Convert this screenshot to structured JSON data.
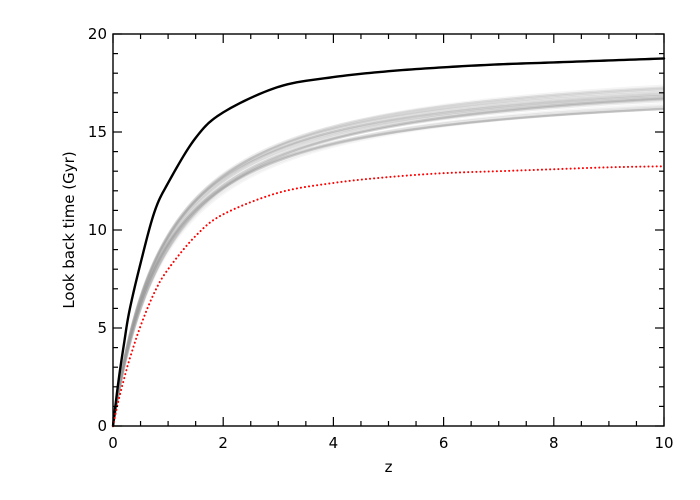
{
  "chart_data": {
    "type": "line",
    "title": "",
    "xlabel": "z",
    "ylabel": "Look back time (Gyr)",
    "xlim": [
      0,
      10
    ],
    "ylim": [
      0,
      20
    ],
    "xticks": [
      0,
      2,
      4,
      6,
      8,
      10
    ],
    "yticks": [
      0,
      5,
      10,
      15,
      20
    ],
    "xtick_labels": [
      "0",
      "2",
      "4",
      "6",
      "8",
      "10"
    ],
    "ytick_labels": [
      "0",
      "5",
      "10",
      "15",
      "20"
    ],
    "x_minor_step": 0.5,
    "y_minor_step": 1,
    "grid": false,
    "legend": "none",
    "ensemble": {
      "color": "#9a9a9a",
      "note_count": 30,
      "t_max_range": [
        17.6,
        19.1
      ],
      "z_half_range": [
        0.88,
        1.05
      ]
    },
    "series": [
      {
        "style": "solid",
        "color": "#000000",
        "x": [
          0,
          0.1,
          0.2,
          0.3,
          0.5,
          0.75,
          1,
          1.5,
          2,
          3,
          4,
          5,
          6,
          7,
          8,
          9,
          10
        ],
        "y": [
          0,
          2.3,
          4.2,
          5.9,
          8.3,
          10.9,
          12.4,
          14.7,
          16.0,
          17.3,
          17.8,
          18.1,
          18.3,
          18.45,
          18.55,
          18.65,
          18.75
        ]
      },
      {
        "style": "dotted",
        "color": "#ff0000",
        "x": [
          0,
          0.1,
          0.2,
          0.3,
          0.5,
          0.75,
          1,
          1.5,
          2,
          3,
          4,
          5,
          6,
          7,
          8,
          9,
          10
        ],
        "y": [
          0,
          1.3,
          2.4,
          3.4,
          5.1,
          6.8,
          8.0,
          9.7,
          10.8,
          11.9,
          12.4,
          12.7,
          12.9,
          13.0,
          13.1,
          13.2,
          13.25
        ]
      }
    ]
  }
}
